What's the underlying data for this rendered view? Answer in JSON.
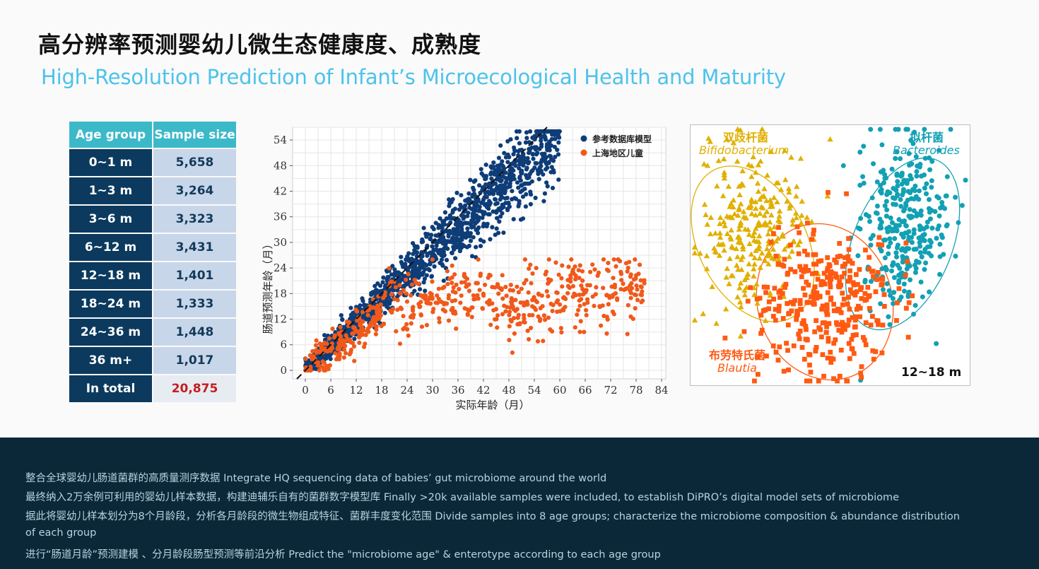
{
  "header": {
    "title_zh": "高分辨率预测婴幼儿微生态健康度、成熟度",
    "title_en": "High-Resolution Prediction of Infant’s Microecological Health and Maturity"
  },
  "age_table": {
    "headers": [
      "Age group",
      "Sample size"
    ],
    "rows": [
      {
        "group": "0~1 m",
        "size": "5,658"
      },
      {
        "group": "1~3 m",
        "size": "3,264"
      },
      {
        "group": "3~6 m",
        "size": "3,323"
      },
      {
        "group": "6~12 m",
        "size": "3,431"
      },
      {
        "group": "12~18 m",
        "size": "1,401"
      },
      {
        "group": "18~24 m",
        "size": "1,333"
      },
      {
        "group": "24~36 m",
        "size": "1,448"
      },
      {
        "group": "36 m+",
        "size": "1,017"
      }
    ],
    "total": {
      "group": "In total",
      "size": "20,875"
    }
  },
  "chart_data": [
    {
      "type": "scatter",
      "xlabel": "实际年龄（月）",
      "ylabel": "肠道预测年龄（月）",
      "xlim": [
        -3,
        85
      ],
      "ylim": [
        -2,
        57
      ],
      "xticks": [
        0,
        6,
        12,
        18,
        24,
        30,
        36,
        42,
        48,
        54,
        60,
        66,
        72,
        78,
        84
      ],
      "yticks": [
        0,
        6,
        12,
        18,
        24,
        30,
        36,
        42,
        48,
        54
      ],
      "grid": true,
      "legend_position": "top-right",
      "reference_line": {
        "style": "dashed",
        "slope": 1,
        "intercept": 0
      },
      "series": [
        {
          "name": "参考数据库模型",
          "color": "#0e3d78",
          "x_range": [
            0,
            60
          ],
          "approx_trend": "y ≈ 0.92x (along diagonal)",
          "y_range": [
            0,
            56
          ]
        },
        {
          "name": "上海地区儿童",
          "color": "#f0591a",
          "x_range": [
            0,
            81
          ],
          "y_range": [
            0,
            26
          ],
          "approx_trend": "y ≈ 0.8x up to x≈18, then spread between 6 and 26"
        }
      ]
    },
    {
      "type": "scatter",
      "panel_label": "12~18 m",
      "grid": false,
      "series": [
        {
          "name_zh": "双歧杆菌",
          "name": "Bifidobacterium",
          "color": "#e0b000",
          "marker": "triangle"
        },
        {
          "name_zh": "拟杆菌",
          "name": "Bacteroides",
          "color": "#12a0b4",
          "marker": "circle"
        },
        {
          "name_zh": "布劳特氏菌",
          "name": "Blautia",
          "color": "#ff5a12",
          "marker": "square"
        }
      ]
    }
  ],
  "colors": {
    "accent_cyan": "#4cc3ea",
    "table_header": "#3cb9c9",
    "table_dark": "#0b3a5e",
    "footer_bg": "#0a2838",
    "reference_blue": "#0e3d78",
    "shanghai_orange": "#f0591a"
  },
  "footer": {
    "lines": [
      "整合全球婴幼儿肠道菌群的高质量测序数据 Integrate HQ sequencing data of babies’ gut microbiome around the world",
      "最终纳入2万余例可利用的婴幼儿样本数据，构建迪辅乐自有的菌群数字模型库 Finally >20k available samples were included, to establish DiPRO’s digital model sets of microbiome",
      "据此将婴幼儿样本划分为8个月龄段，分析各月龄段的微生物组成特征、菌群丰度变化范围 Divide samples into 8 age groups; characterize the microbiome composition & abundance distribution",
      "of each group",
      "进行“肠道月龄”预测建模 、分月龄段肠型预测等前沿分析 Predict the \"microbiome age\" & enterotype according to each age group"
    ]
  }
}
